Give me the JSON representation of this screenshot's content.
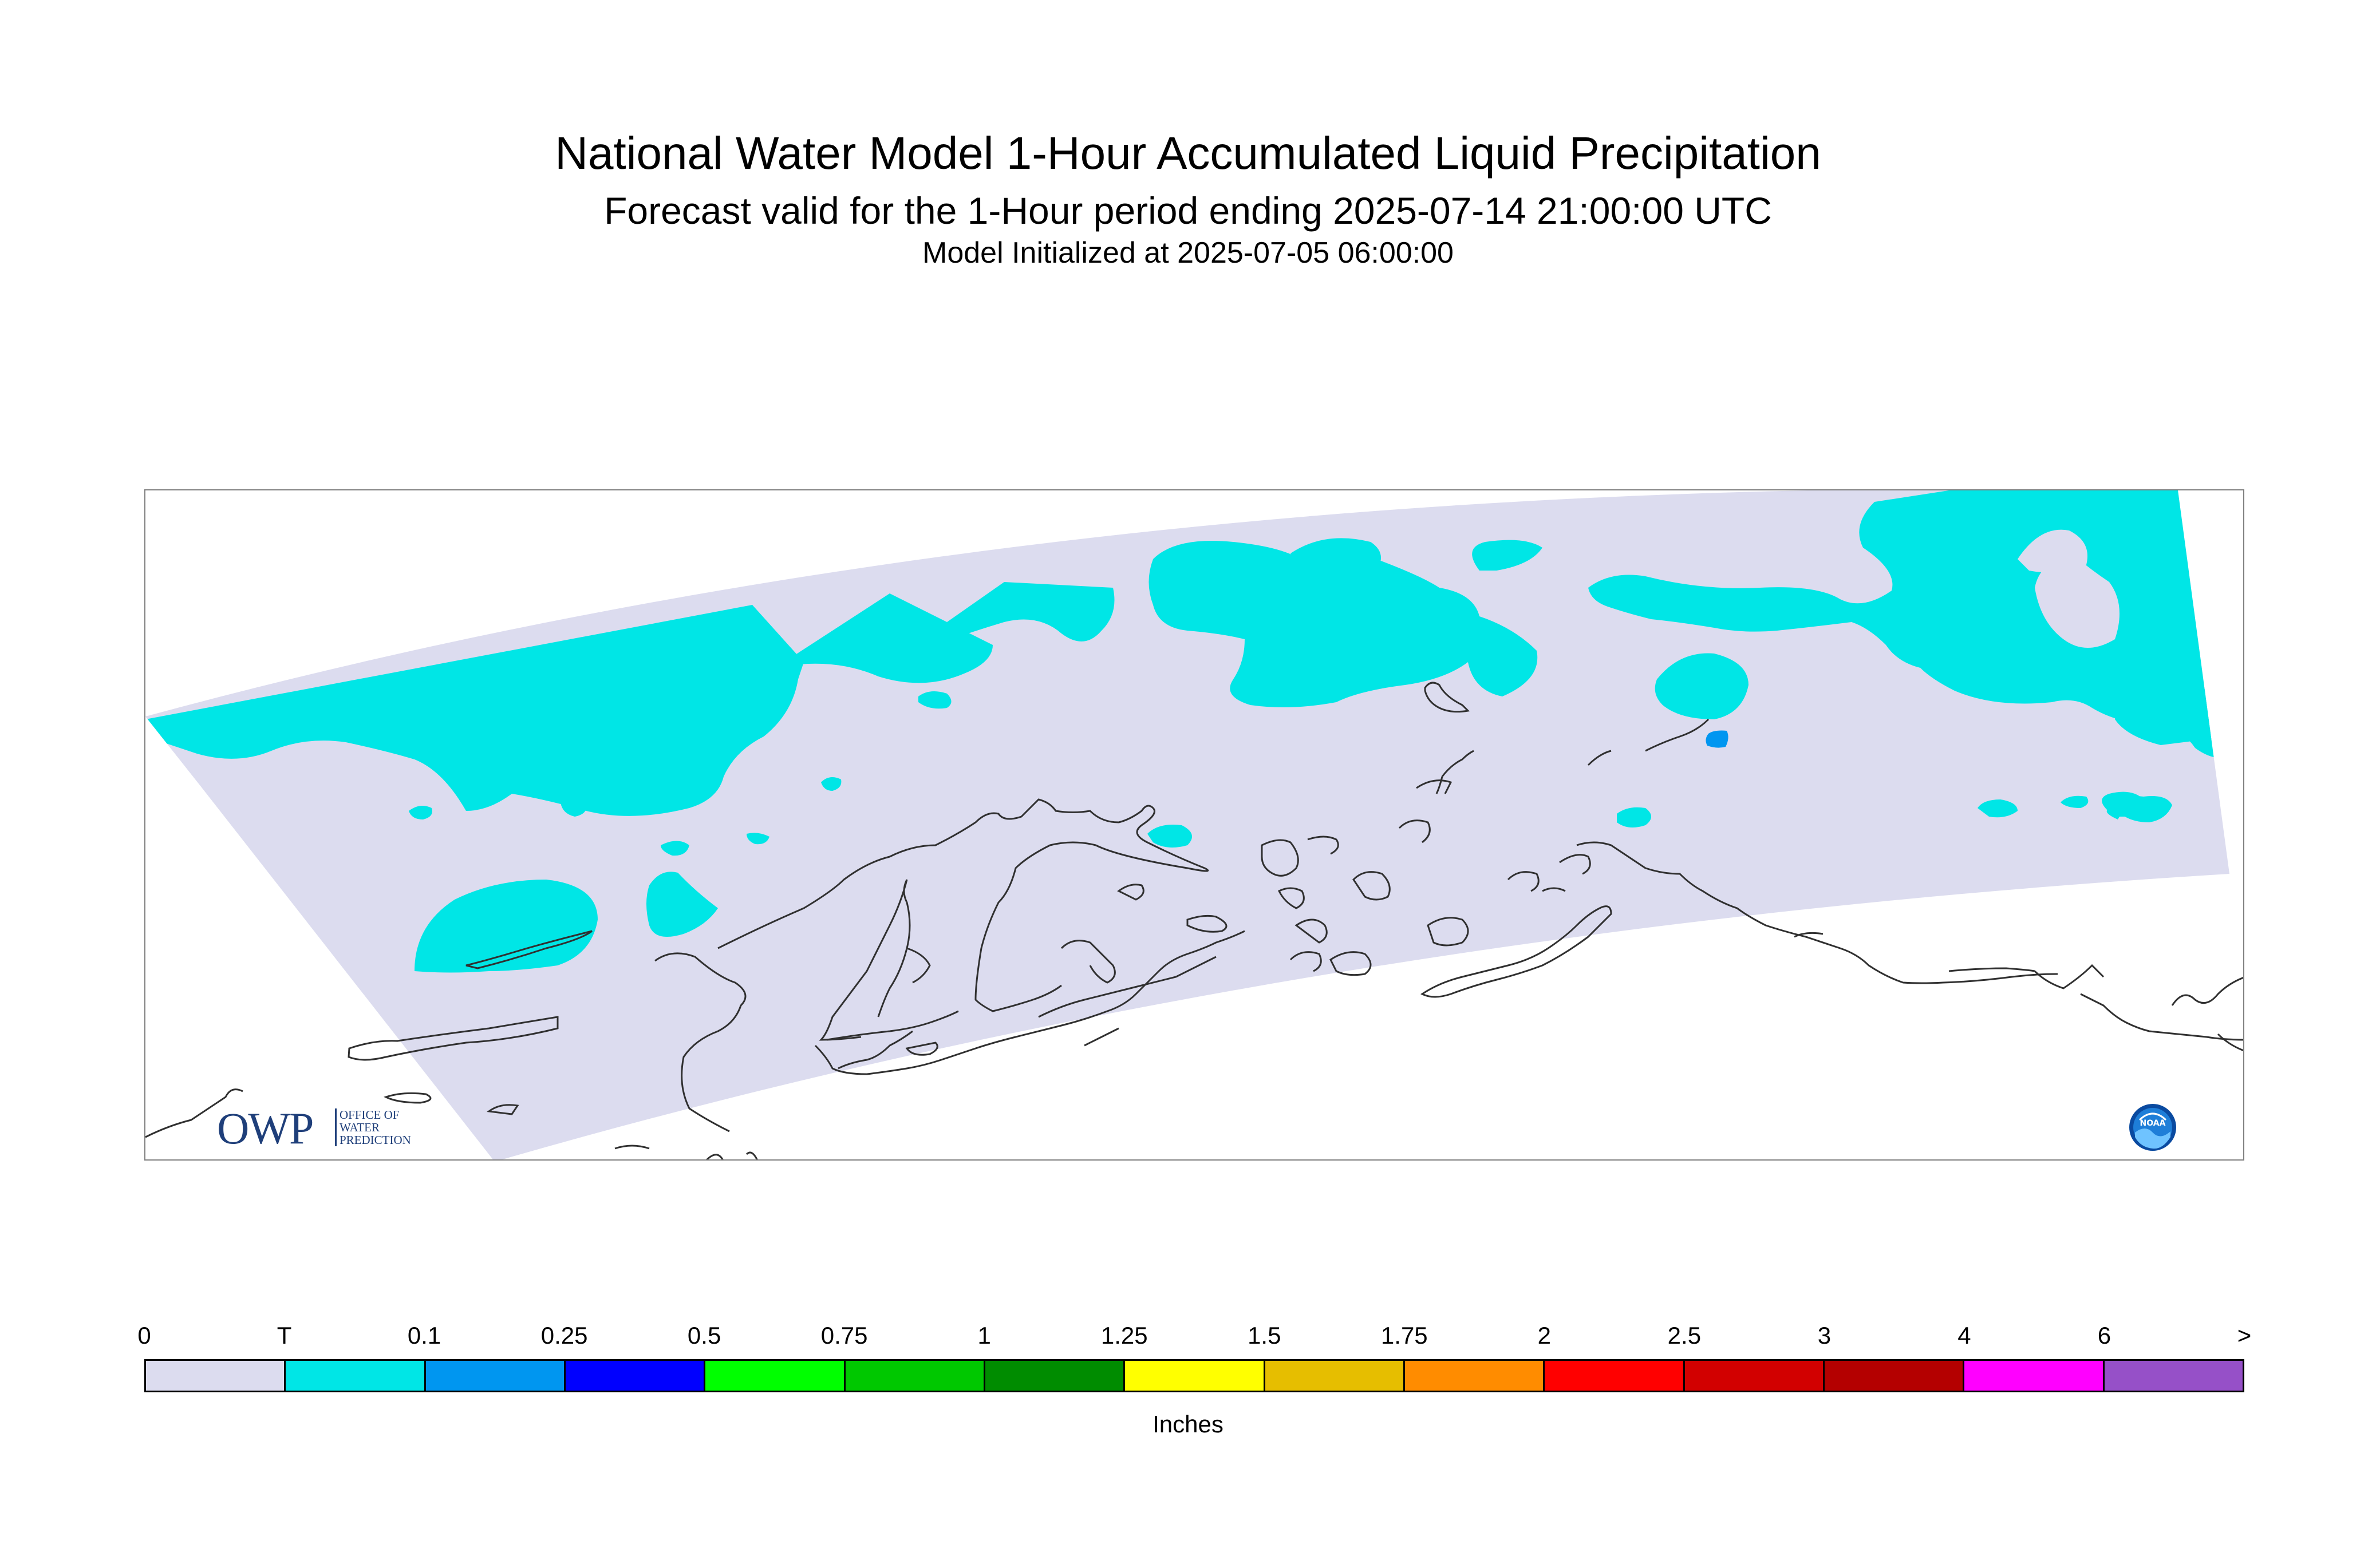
{
  "header": {
    "title": "National Water Model 1-Hour Accumulated Liquid Precipitation",
    "subtitle": "Forecast valid for the 1-Hour period ending 2025-07-14 21:00:00 UTC",
    "init_line": "Model Initialized at 2025-07-05 06:00:00"
  },
  "logos": {
    "owp_text": "OWP",
    "owp_sub": [
      "OFFICE OF",
      "WATER",
      "PREDICTION"
    ],
    "noaa_text": "NOAA"
  },
  "colors": {
    "zero": "#dcdcef",
    "trace": "#00e6e6",
    "light": "#0096f0",
    "coastline": "#303030",
    "frame": "#808080"
  },
  "legend": {
    "units": "Inches",
    "tick_labels": [
      "0",
      "T",
      "0.1",
      "0.25",
      "0.5",
      "0.75",
      "1",
      "1.25",
      "1.5",
      "1.75",
      "2",
      "2.5",
      "3",
      "4",
      "6",
      ">"
    ],
    "bins": [
      {
        "color": "#dcdcef"
      },
      {
        "color": "#00e6e6"
      },
      {
        "color": "#0096f0"
      },
      {
        "color": "#0000ff"
      },
      {
        "color": "#00ff00"
      },
      {
        "color": "#00c800"
      },
      {
        "color": "#008c00"
      },
      {
        "color": "#ffff00"
      },
      {
        "color": "#e6be00"
      },
      {
        "color": "#ff8c00"
      },
      {
        "color": "#ff0000"
      },
      {
        "color": "#d20000"
      },
      {
        "color": "#b40000"
      },
      {
        "color": "#ff00ff"
      },
      {
        "color": "#9650c8"
      }
    ]
  }
}
